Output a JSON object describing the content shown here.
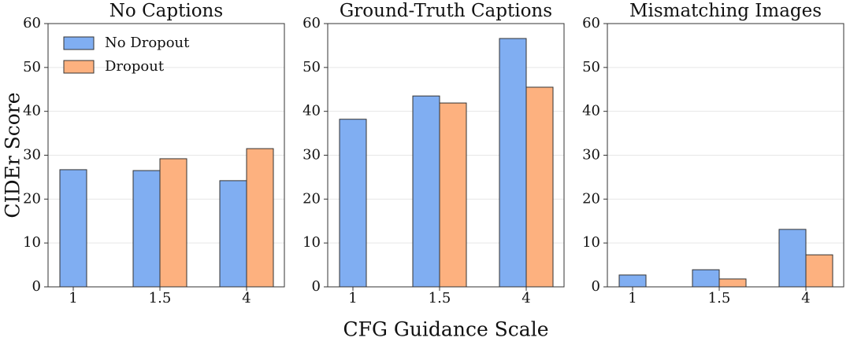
{
  "chart_data": [
    {
      "type": "bar",
      "title": "No Captions",
      "ylabel": "CIDEr Score",
      "categories": [
        "1",
        "1.5",
        "4"
      ],
      "series": [
        {
          "name": "No Dropout",
          "color": "#80aef2",
          "values": [
            26.7,
            26.5,
            24.2
          ]
        },
        {
          "name": "Dropout",
          "color": "#fdb17f",
          "values": [
            null,
            29.2,
            31.5
          ]
        }
      ],
      "ylim": [
        0,
        60
      ],
      "yticks": [
        0,
        10,
        20,
        30,
        40,
        50,
        60
      ],
      "grid": true,
      "legend": "upper left"
    },
    {
      "type": "bar",
      "title": "Ground-Truth Captions",
      "xlabel": "CFG Guidance Scale",
      "categories": [
        "1",
        "1.5",
        "4"
      ],
      "series": [
        {
          "color": "#80aef2",
          "values": [
            38.2,
            43.5,
            56.6
          ]
        },
        {
          "color": "#fdb17f",
          "values": [
            null,
            41.9,
            45.5
          ]
        }
      ],
      "ylim": [
        0,
        60
      ],
      "yticks": [
        0,
        10,
        20,
        30,
        40,
        50,
        60
      ],
      "grid": true
    },
    {
      "type": "bar",
      "title": "Mismatching Images",
      "categories": [
        "1",
        "1.5",
        "4"
      ],
      "series": [
        {
          "color": "#80aef2",
          "values": [
            2.7,
            3.9,
            13.1
          ]
        },
        {
          "color": "#fdb17f",
          "values": [
            null,
            1.8,
            7.3
          ]
        }
      ],
      "ylim": [
        0,
        60
      ],
      "yticks": [
        0,
        10,
        20,
        30,
        40,
        50,
        60
      ],
      "grid": true
    }
  ]
}
